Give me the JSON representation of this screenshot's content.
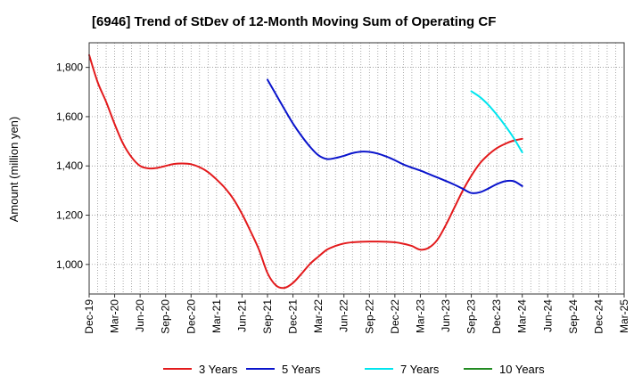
{
  "chart_data": {
    "type": "line",
    "title": "[6946]  Trend of StDev of 12-Month Moving Sum of Operating CF",
    "xlabel": "",
    "ylabel": "Amount (million yen)",
    "ylim": [
      880,
      1900
    ],
    "yticks": [
      1000,
      1200,
      1400,
      1600,
      1800
    ],
    "ytick_labels": [
      "1,000",
      "1,200",
      "1,400",
      "1,600",
      "1,800"
    ],
    "x_start": "Dec-19",
    "x_end": "Mar-25",
    "xtick_labels": [
      "Dec-19",
      "Mar-20",
      "Jun-20",
      "Sep-20",
      "Dec-20",
      "Mar-21",
      "Jun-21",
      "Sep-21",
      "Dec-21",
      "Mar-22",
      "Jun-22",
      "Sep-22",
      "Dec-22",
      "Mar-23",
      "Jun-23",
      "Sep-23",
      "Dec-23",
      "Mar-24",
      "Jun-24",
      "Sep-24",
      "Dec-24",
      "Mar-25"
    ],
    "grid": true,
    "legend_position": "bottom",
    "series": [
      {
        "name": "3 Years",
        "color": "#e31a1c",
        "x": [
          "Dec-19",
          "Jan-20",
          "Feb-20",
          "Mar-20",
          "Apr-20",
          "May-20",
          "Jun-20",
          "Jul-20",
          "Aug-20",
          "Sep-20",
          "Oct-20",
          "Nov-20",
          "Dec-20",
          "Jan-21",
          "Feb-21",
          "Mar-21",
          "Apr-21",
          "May-21",
          "Jun-21",
          "Jul-21",
          "Aug-21",
          "Sep-21",
          "Oct-21",
          "Nov-21",
          "Dec-21",
          "Jan-22",
          "Feb-22",
          "Mar-22",
          "Apr-22",
          "May-22",
          "Jun-22",
          "Jul-22",
          "Aug-22",
          "Sep-22",
          "Oct-22",
          "Nov-22",
          "Dec-22",
          "Jan-23",
          "Feb-23",
          "Mar-23",
          "Apr-23",
          "May-23",
          "Jun-23",
          "Jul-23",
          "Aug-23",
          "Sep-23",
          "Oct-23",
          "Nov-23",
          "Dec-23",
          "Jan-24",
          "Feb-24",
          "Mar-24"
        ],
        "values": [
          1850,
          1740,
          1660,
          1570,
          1490,
          1435,
          1400,
          1390,
          1392,
          1400,
          1408,
          1410,
          1407,
          1395,
          1375,
          1345,
          1310,
          1265,
          1205,
          1135,
          1060,
          965,
          915,
          905,
          925,
          962,
          1002,
          1032,
          1060,
          1075,
          1085,
          1090,
          1092,
          1093,
          1093,
          1092,
          1090,
          1084,
          1075,
          1060,
          1068,
          1100,
          1160,
          1230,
          1300,
          1360,
          1410,
          1445,
          1472,
          1490,
          1503,
          1510
        ]
      },
      {
        "name": "5 Years",
        "color": "#0a14cc",
        "x": [
          "Sep-21",
          "Oct-21",
          "Nov-21",
          "Dec-21",
          "Jan-22",
          "Feb-22",
          "Mar-22",
          "Apr-22",
          "May-22",
          "Jun-22",
          "Jul-22",
          "Aug-22",
          "Sep-22",
          "Oct-22",
          "Nov-22",
          "Dec-22",
          "Jan-23",
          "Feb-23",
          "Mar-23",
          "Apr-23",
          "May-23",
          "Jun-23",
          "Jul-23",
          "Aug-23",
          "Sep-23",
          "Oct-23",
          "Nov-23",
          "Dec-23",
          "Jan-24",
          "Feb-24",
          "Mar-24"
        ],
        "values": [
          1750,
          1690,
          1630,
          1572,
          1522,
          1478,
          1443,
          1428,
          1432,
          1441,
          1452,
          1458,
          1457,
          1450,
          1438,
          1423,
          1406,
          1393,
          1381,
          1367,
          1353,
          1339,
          1324,
          1307,
          1290,
          1293,
          1308,
          1326,
          1338,
          1338,
          1318
        ]
      },
      {
        "name": "7 Years",
        "color": "#00e5ee",
        "x": [
          "Sep-23",
          "Oct-23",
          "Nov-23",
          "Dec-23",
          "Jan-24",
          "Feb-24",
          "Mar-24"
        ],
        "values": [
          1703,
          1680,
          1648,
          1608,
          1563,
          1513,
          1455
        ]
      },
      {
        "name": "10 Years",
        "color": "#228b22",
        "x": [],
        "values": []
      }
    ]
  }
}
